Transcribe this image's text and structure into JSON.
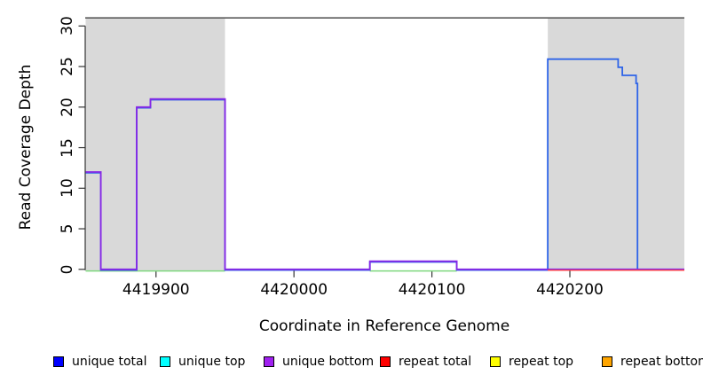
{
  "chart_data": {
    "type": "line",
    "subtype": "step-coverage",
    "title": "",
    "xlabel": "Coordinate in Reference Genome",
    "ylabel": "Read Coverage Depth",
    "xlim": [
      4419849,
      4420283
    ],
    "ylim": [
      0,
      31
    ],
    "x_ticks": [
      "4419900",
      "4420000",
      "4420100",
      "4420200"
    ],
    "x_tick_values": [
      4419900,
      4420000,
      4420100,
      4420200
    ],
    "y_ticks": [
      "0",
      "5",
      "10",
      "15",
      "20",
      "25",
      "30"
    ],
    "y_tick_values": [
      0,
      5,
      10,
      15,
      20,
      25,
      30
    ],
    "grid": false,
    "frame_top_line_depth": 31,
    "frame_top_line_color": "#5a5a5a",
    "axis_color": "#333333",
    "shaded_region_color": "#d9d9d9",
    "shaded_regions": [
      {
        "x_start": 4419849,
        "x_end": 4419950
      },
      {
        "x_start": 4420184,
        "x_end": 4420283
      }
    ],
    "series": [
      {
        "name": "unique top / repeat top baseline overlap",
        "color": "#7fd87f",
        "segments": [
          [
            4419849,
            4419950,
            0
          ],
          [
            4420055,
            4420118,
            0
          ]
        ]
      },
      {
        "name": "unique total",
        "color": "#2e64e8",
        "segments": [
          [
            4419849,
            4419860,
            12
          ],
          [
            4419860,
            4419886,
            0
          ],
          [
            4419886,
            4419896,
            20
          ],
          [
            4419896,
            4419950,
            21
          ],
          [
            4419950,
            4420055,
            0
          ],
          [
            4420055,
            4420118,
            1
          ],
          [
            4420118,
            4420184,
            0
          ],
          [
            4420184,
            4420235,
            26
          ],
          [
            4420235,
            4420238,
            25
          ],
          [
            4420238,
            4420248,
            24
          ],
          [
            4420248,
            4420249,
            23
          ],
          [
            4420249,
            4420283,
            0
          ]
        ]
      },
      {
        "name": "unique bottom",
        "color": "#8727e6",
        "segments": [
          [
            4419849,
            4419860,
            12
          ],
          [
            4419860,
            4419886,
            0
          ],
          [
            4419886,
            4419896,
            20
          ],
          [
            4419896,
            4419950,
            21
          ],
          [
            4419950,
            4420055,
            0
          ],
          [
            4420055,
            4420118,
            1
          ],
          [
            4420118,
            4420283,
            0
          ]
        ]
      },
      {
        "name": "repeat total",
        "color": "#ff4040",
        "segments": [
          [
            4420184,
            4420283,
            0
          ]
        ]
      }
    ],
    "legend_position": "bottom"
  },
  "legend": {
    "items": [
      {
        "label": "unique total",
        "color": "#0000ff"
      },
      {
        "label": "unique top",
        "color": "#00ffff"
      },
      {
        "label": "unique bottom",
        "color": "#a020f0"
      },
      {
        "label": "repeat total",
        "color": "#ff0000"
      },
      {
        "label": "repeat top",
        "color": "#ffff00"
      },
      {
        "label": "repeat bottom",
        "color": "#ffa500"
      }
    ]
  }
}
